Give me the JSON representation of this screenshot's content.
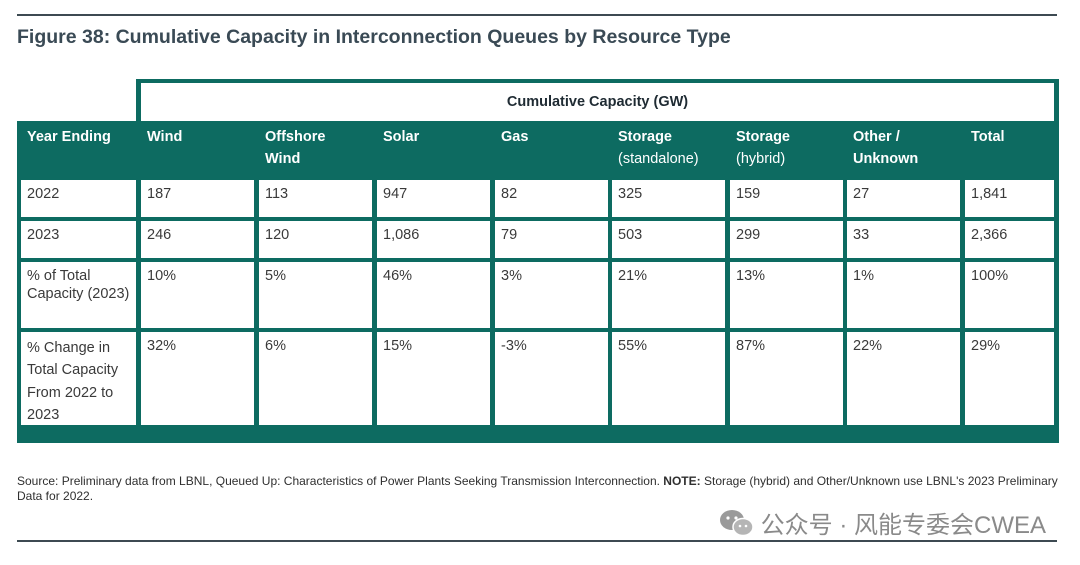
{
  "figure": {
    "title": "Figure 38: Cumulative Capacity in Interconnection Queues by Resource Type"
  },
  "table": {
    "group_header": "Cumulative Capacity (GW)",
    "columns": [
      {
        "line1": "Year Ending",
        "line2": ""
      },
      {
        "line1": "Wind",
        "line2": ""
      },
      {
        "line1": "Offshore",
        "line2": "Wind"
      },
      {
        "line1": "Solar",
        "line2": ""
      },
      {
        "line1": "Gas",
        "line2": ""
      },
      {
        "line1": "Storage",
        "line2": "(standalone)"
      },
      {
        "line1": "Storage",
        "line2": "(hybrid)"
      },
      {
        "line1": "Other /",
        "line2": "Unknown"
      },
      {
        "line1": "Total",
        "line2": ""
      }
    ],
    "rows": [
      [
        "2022",
        "187",
        "113",
        "947",
        "82",
        "325",
        "159",
        "27",
        "1,841"
      ],
      [
        "2023",
        "246",
        "120",
        "1,086",
        "79",
        "503",
        "299",
        "33",
        "2,366"
      ],
      [
        "% of Total Capacity (2023)",
        "10%",
        "5%",
        "46%",
        "3%",
        "21%",
        "13%",
        "1%",
        "100%"
      ],
      [
        "% Change in Total Capacity From 2022 to 2023",
        "32%",
        "6%",
        "15%",
        "-3%",
        "55%",
        "87%",
        "22%",
        "29%"
      ]
    ]
  },
  "source": {
    "text": "Source: Preliminary data from LBNL, Queued Up: Characteristics of Power Plants Seeking Transmission Interconnection. ",
    "note_label": "NOTE:",
    "note_text": " Storage (hybrid) and Other/Unknown use LBNL's 2023 Preliminary Data for 2022."
  },
  "watermark": {
    "text": "公众号 · 风能专委会CWEA",
    "icon": "wechat-icon"
  },
  "colors": {
    "teal": "#0d6b61",
    "title": "#3a4a55"
  }
}
